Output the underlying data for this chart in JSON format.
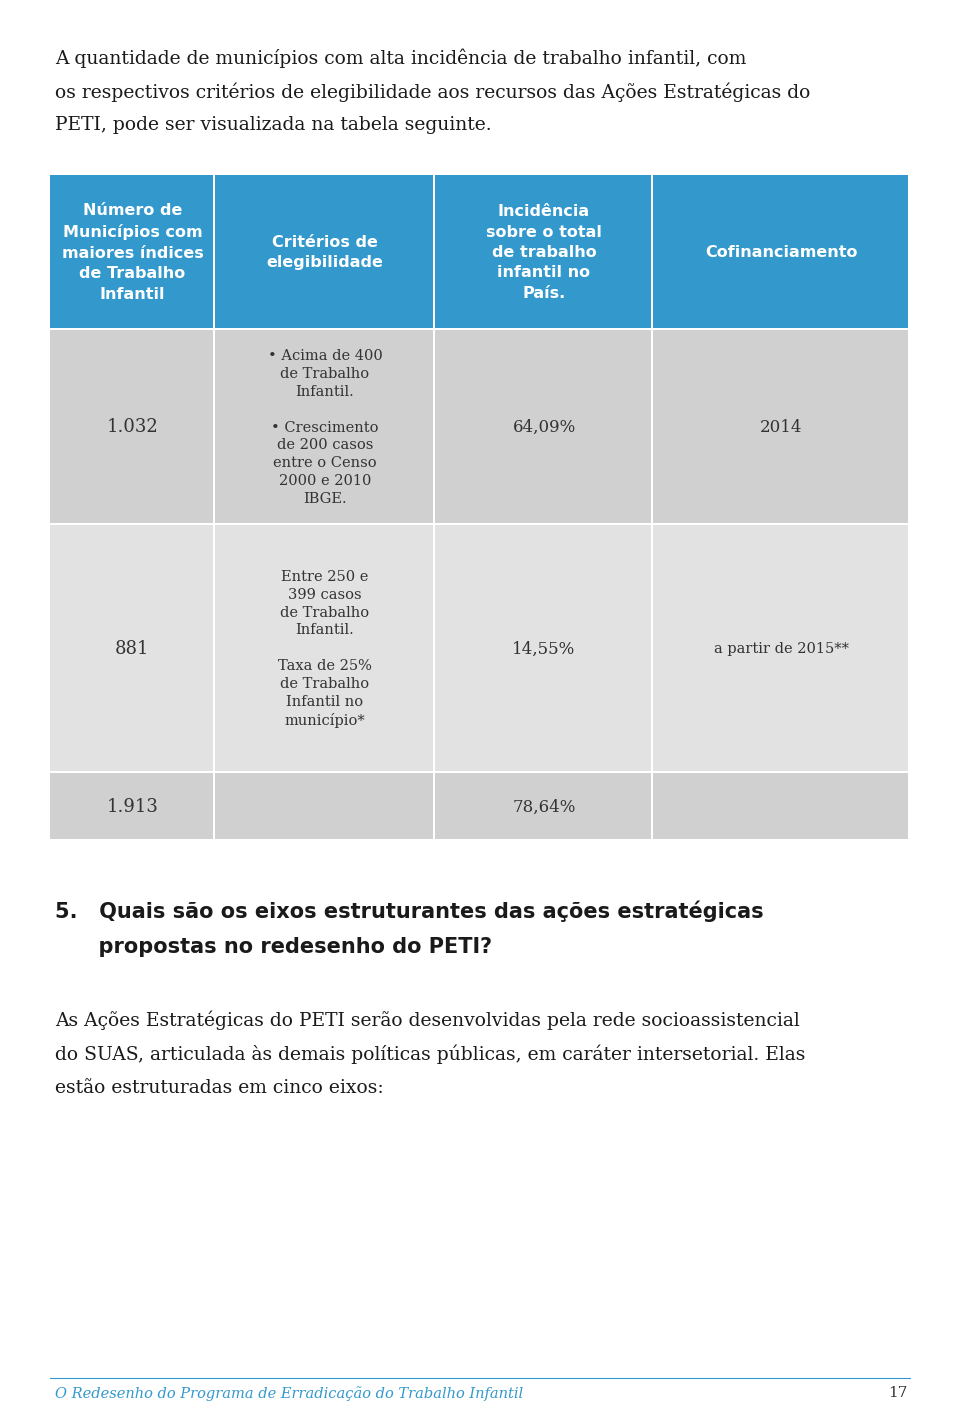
{
  "page_bg": "#ffffff",
  "header_bg": "#3399cc",
  "header_text_color": "#ffffff",
  "col_headers": [
    "Número de\nMunicípios com\nmaiores índices\nde Trabalho\nInfantil",
    "Critérios de\nelegibilidade",
    "Incidência\nsobre o total\nde trabalho\ninfantil no\nPaís.",
    "Cofinanciamento"
  ],
  "row_bg_1": "#d0d0d0",
  "row_bg_2": "#e2e2e2",
  "table_text_color": "#333333",
  "intro_text_line1": "A quantidade de municípios com alta incidência de trabalho infantil, com",
  "intro_text_line2": "os respectivos critérios de elegibilidade aos recursos das Ações Estratégicas do",
  "intro_text_line3": "PETI, pode ser visualizada na tabela seguinte.",
  "footer_text": "O Redesenho do Programa de Erradicação do Trabalho Infantil",
  "footer_page": "17",
  "footer_color": "#3399cc",
  "section_title_line1": "5.   Quais são os eixos estruturantes das ações estratégicas",
  "section_title_line2": "      propostas no redesenho do PETI?",
  "body_line1": "As Ações Estratégicas do PETI serão desenvolvidas pela rede socioassistencial",
  "body_line2": "do SUAS, articulada às demais políticas públicas, em caráter intersetorial. Elas",
  "body_line3": "estão estruturadas em cinco eixos:",
  "row1_col0": "1.032",
  "row1_col1a": "• Acima de 400",
  "row1_col1b": "de Trabalho",
  "row1_col1c": "Infantil.",
  "row1_col1d": "• Crescimento",
  "row1_col1e": "de 200 casos",
  "row1_col1f": "entre o Censo",
  "row1_col1g": "2000 e 2010",
  "row1_col1h": "IBGE.",
  "row1_col2": "64,09%",
  "row1_col3": "2014",
  "row2_col0": "881",
  "row2_col1a": "Entre 250 e",
  "row2_col1b": "399 casos",
  "row2_col1c": "de Trabalho",
  "row2_col1d": "Infantil.",
  "row2_col1e": "Taxa de 25%",
  "row2_col1f": "de Trabalho",
  "row2_col1g": "Infantil no",
  "row2_col1h": "município*",
  "row2_col2": "14,55%",
  "row2_col3": "a partir de 2015**",
  "row3_col0": "1.913",
  "row3_col2": "78,64%"
}
